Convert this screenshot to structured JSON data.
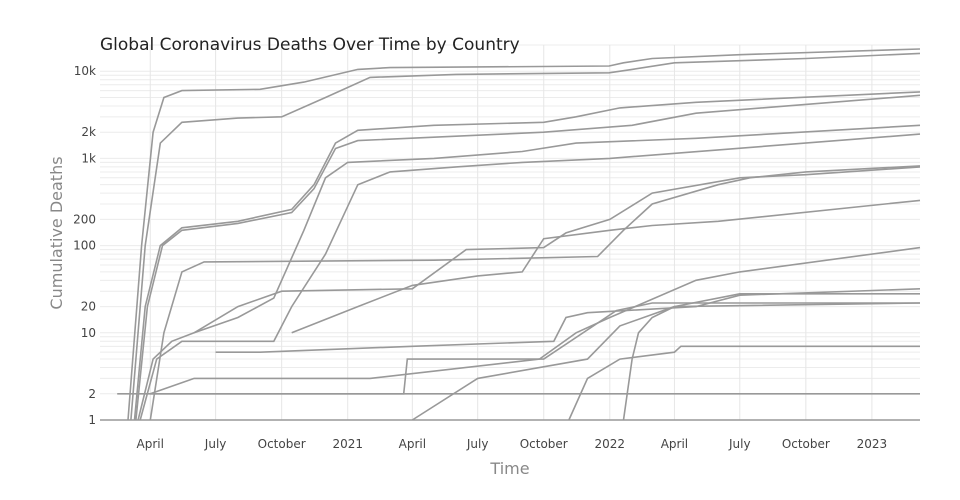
{
  "chart_data": {
    "type": "line",
    "title": "Global Coronavirus Deaths Over Time by Country",
    "xlabel": "Time",
    "ylabel": "Cumulative Deaths",
    "yscale": "log",
    "ylim": [
      1,
      20000
    ],
    "xlim": [
      "2020-01-22",
      "2023-03-09"
    ],
    "grid": true,
    "legend": "none",
    "line_color": "#999999",
    "y_ticks": [
      {
        "value": 1,
        "label": "1"
      },
      {
        "value": 2,
        "label": "2"
      },
      {
        "value": 10,
        "label": "10"
      },
      {
        "value": 20,
        "label": "20"
      },
      {
        "value": 100,
        "label": "100"
      },
      {
        "value": 200,
        "label": "200"
      },
      {
        "value": 1000,
        "label": "1k"
      },
      {
        "value": 2000,
        "label": "2k"
      },
      {
        "value": 10000,
        "label": "10k"
      }
    ],
    "x_ticks": [
      {
        "date": "2020-04-01",
        "label": "April"
      },
      {
        "date": "2020-07-01",
        "label": "July"
      },
      {
        "date": "2020-10-01",
        "label": "October"
      },
      {
        "date": "2021-01-01",
        "label": "2021"
      },
      {
        "date": "2021-04-01",
        "label": "April"
      },
      {
        "date": "2021-07-01",
        "label": "July"
      },
      {
        "date": "2021-10-01",
        "label": "October"
      },
      {
        "date": "2022-01-01",
        "label": "2022"
      },
      {
        "date": "2022-04-01",
        "label": "April"
      },
      {
        "date": "2022-07-01",
        "label": "July"
      },
      {
        "date": "2022-10-01",
        "label": "October"
      },
      {
        "date": "2023-01-01",
        "label": "2023"
      }
    ],
    "series": [
      {
        "points": [
          [
            "2020-03-01",
            1
          ],
          [
            "2020-03-20",
            100
          ],
          [
            "2020-04-05",
            2000
          ],
          [
            "2020-04-20",
            5000
          ],
          [
            "2020-05-15",
            6000
          ],
          [
            "2020-09-01",
            6200
          ],
          [
            "2020-11-01",
            7500
          ],
          [
            "2021-01-15",
            10500
          ],
          [
            "2021-03-01",
            11000
          ],
          [
            "2021-12-31",
            11500
          ],
          [
            "2022-01-20",
            12500
          ],
          [
            "2022-03-01",
            14000
          ],
          [
            "2022-07-01",
            15500
          ],
          [
            "2023-03-09",
            18000
          ]
        ]
      },
      {
        "points": [
          [
            "2020-03-05",
            1
          ],
          [
            "2020-03-25",
            100
          ],
          [
            "2020-04-15",
            1500
          ],
          [
            "2020-05-15",
            2600
          ],
          [
            "2020-08-01",
            2900
          ],
          [
            "2020-10-01",
            3000
          ],
          [
            "2020-12-01",
            5000
          ],
          [
            "2021-02-01",
            8500
          ],
          [
            "2021-06-01",
            9200
          ],
          [
            "2021-12-31",
            9600
          ],
          [
            "2022-02-01",
            10500
          ],
          [
            "2022-04-01",
            12500
          ],
          [
            "2022-10-01",
            14000
          ],
          [
            "2023-03-09",
            16000
          ]
        ]
      },
      {
        "points": [
          [
            "2020-03-10",
            1
          ],
          [
            "2020-03-25",
            20
          ],
          [
            "2020-04-15",
            100
          ],
          [
            "2020-05-15",
            160
          ],
          [
            "2020-08-01",
            190
          ],
          [
            "2020-10-15",
            260
          ],
          [
            "2020-11-15",
            500
          ],
          [
            "2020-12-15",
            1500
          ],
          [
            "2021-01-15",
            2100
          ],
          [
            "2021-05-01",
            2400
          ],
          [
            "2021-10-01",
            2600
          ],
          [
            "2021-11-15",
            3000
          ],
          [
            "2022-01-15",
            3800
          ],
          [
            "2022-05-01",
            4400
          ],
          [
            "2023-03-09",
            5800
          ]
        ]
      },
      {
        "points": [
          [
            "2020-03-12",
            1
          ],
          [
            "2020-03-28",
            20
          ],
          [
            "2020-04-18",
            100
          ],
          [
            "2020-05-15",
            150
          ],
          [
            "2020-08-01",
            180
          ],
          [
            "2020-10-15",
            240
          ],
          [
            "2020-11-15",
            450
          ],
          [
            "2020-12-15",
            1300
          ],
          [
            "2021-01-15",
            1600
          ],
          [
            "2021-10-01",
            2000
          ],
          [
            "2022-02-01",
            2400
          ],
          [
            "2022-05-01",
            3300
          ],
          [
            "2023-03-09",
            5300
          ]
        ]
      },
      {
        "points": [
          [
            "2020-03-15",
            1
          ],
          [
            "2020-04-05",
            5
          ],
          [
            "2020-05-01",
            8
          ],
          [
            "2020-06-01",
            10
          ],
          [
            "2020-08-01",
            15
          ],
          [
            "2020-09-20",
            25
          ],
          [
            "2020-11-01",
            150
          ],
          [
            "2020-12-01",
            600
          ],
          [
            "2021-01-01",
            900
          ],
          [
            "2021-05-01",
            1000
          ],
          [
            "2021-09-01",
            1200
          ],
          [
            "2021-11-15",
            1500
          ],
          [
            "2022-05-01",
            1700
          ],
          [
            "2023-03-09",
            2400
          ]
        ]
      },
      {
        "points": [
          [
            "2020-03-18",
            1
          ],
          [
            "2020-04-10",
            5
          ],
          [
            "2020-05-15",
            8
          ],
          [
            "2020-09-20",
            8
          ],
          [
            "2020-10-15",
            20
          ],
          [
            "2020-12-01",
            80
          ],
          [
            "2021-01-15",
            500
          ],
          [
            "2021-03-01",
            700
          ],
          [
            "2021-06-01",
            800
          ],
          [
            "2021-09-01",
            900
          ],
          [
            "2022-01-01",
            1000
          ],
          [
            "2023-03-09",
            1900
          ]
        ]
      },
      {
        "points": [
          [
            "2020-04-01",
            1
          ],
          [
            "2020-04-20",
            10
          ],
          [
            "2020-05-15",
            50
          ],
          [
            "2020-06-15",
            65
          ],
          [
            "2021-05-01",
            68
          ],
          [
            "2021-12-15",
            75
          ],
          [
            "2022-01-20",
            150
          ],
          [
            "2022-03-01",
            300
          ],
          [
            "2022-06-01",
            500
          ],
          [
            "2022-07-15",
            600
          ],
          [
            "2022-10-01",
            700
          ],
          [
            "2023-03-09",
            820
          ]
        ]
      },
      {
        "points": [
          [
            "2020-06-01",
            10
          ],
          [
            "2020-08-01",
            20
          ],
          [
            "2020-10-01",
            30
          ],
          [
            "2021-04-01",
            32
          ],
          [
            "2021-06-15",
            90
          ],
          [
            "2021-10-01",
            95
          ],
          [
            "2021-11-01",
            140
          ],
          [
            "2022-01-01",
            200
          ],
          [
            "2022-03-01",
            400
          ],
          [
            "2022-07-01",
            600
          ],
          [
            "2022-10-01",
            650
          ],
          [
            "2023-03-09",
            800
          ]
        ]
      },
      {
        "points": [
          [
            "2020-10-15",
            10
          ],
          [
            "2021-01-15",
            20
          ],
          [
            "2021-04-01",
            35
          ],
          [
            "2021-07-01",
            45
          ],
          [
            "2021-09-01",
            50
          ],
          [
            "2021-10-01",
            120
          ],
          [
            "2022-01-01",
            150
          ],
          [
            "2022-03-01",
            170
          ],
          [
            "2022-06-01",
            190
          ],
          [
            "2023-03-09",
            330
          ]
        ]
      },
      {
        "points": [
          [
            "2020-07-01",
            6
          ],
          [
            "2020-09-01",
            6
          ],
          [
            "2021-04-01",
            7
          ],
          [
            "2021-10-15",
            8
          ],
          [
            "2021-11-01",
            15
          ],
          [
            "2021-12-01",
            17
          ],
          [
            "2022-05-01",
            20
          ],
          [
            "2022-07-01",
            27
          ],
          [
            "2023-03-09",
            32
          ]
        ]
      },
      {
        "points": [
          [
            "2020-04-01",
            2
          ],
          [
            "2020-06-01",
            3
          ],
          [
            "2021-02-01",
            3
          ],
          [
            "2021-09-25",
            5
          ],
          [
            "2021-11-15",
            10
          ],
          [
            "2022-01-01",
            15
          ],
          [
            "2022-05-01",
            40
          ],
          [
            "2022-07-01",
            50
          ],
          [
            "2023-03-09",
            95
          ]
        ]
      },
      {
        "points": [
          [
            "2020-04-01",
            2
          ],
          [
            "2021-03-20",
            2
          ],
          [
            "2021-03-25",
            5
          ],
          [
            "2021-10-01",
            5
          ],
          [
            "2022-01-10",
            18
          ],
          [
            "2022-03-01",
            22
          ],
          [
            "2023-03-09",
            22
          ]
        ]
      },
      {
        "points": [
          [
            "2021-04-01",
            1
          ],
          [
            "2021-07-01",
            3
          ],
          [
            "2021-12-01",
            5
          ],
          [
            "2022-01-15",
            12
          ],
          [
            "2022-04-01",
            20
          ],
          [
            "2023-03-09",
            22
          ]
        ]
      },
      {
        "points": [
          [
            "2022-01-20",
            1
          ],
          [
            "2022-02-01",
            5
          ],
          [
            "2022-02-10",
            10
          ],
          [
            "2022-03-01",
            15
          ],
          [
            "2022-04-01",
            20
          ],
          [
            "2022-07-01",
            28
          ],
          [
            "2023-03-09",
            28
          ]
        ]
      },
      {
        "points": [
          [
            "2021-11-05",
            1
          ],
          [
            "2021-12-01",
            3
          ],
          [
            "2022-01-15",
            5
          ],
          [
            "2022-04-01",
            6
          ],
          [
            "2022-04-10",
            7
          ],
          [
            "2023-03-09",
            7
          ]
        ]
      },
      {
        "points": [
          [
            "2020-02-15",
            2
          ],
          [
            "2023-03-09",
            2
          ]
        ]
      },
      {
        "points": [
          [
            "2020-01-22",
            1
          ],
          [
            "2023-03-09",
            1
          ]
        ]
      }
    ]
  }
}
